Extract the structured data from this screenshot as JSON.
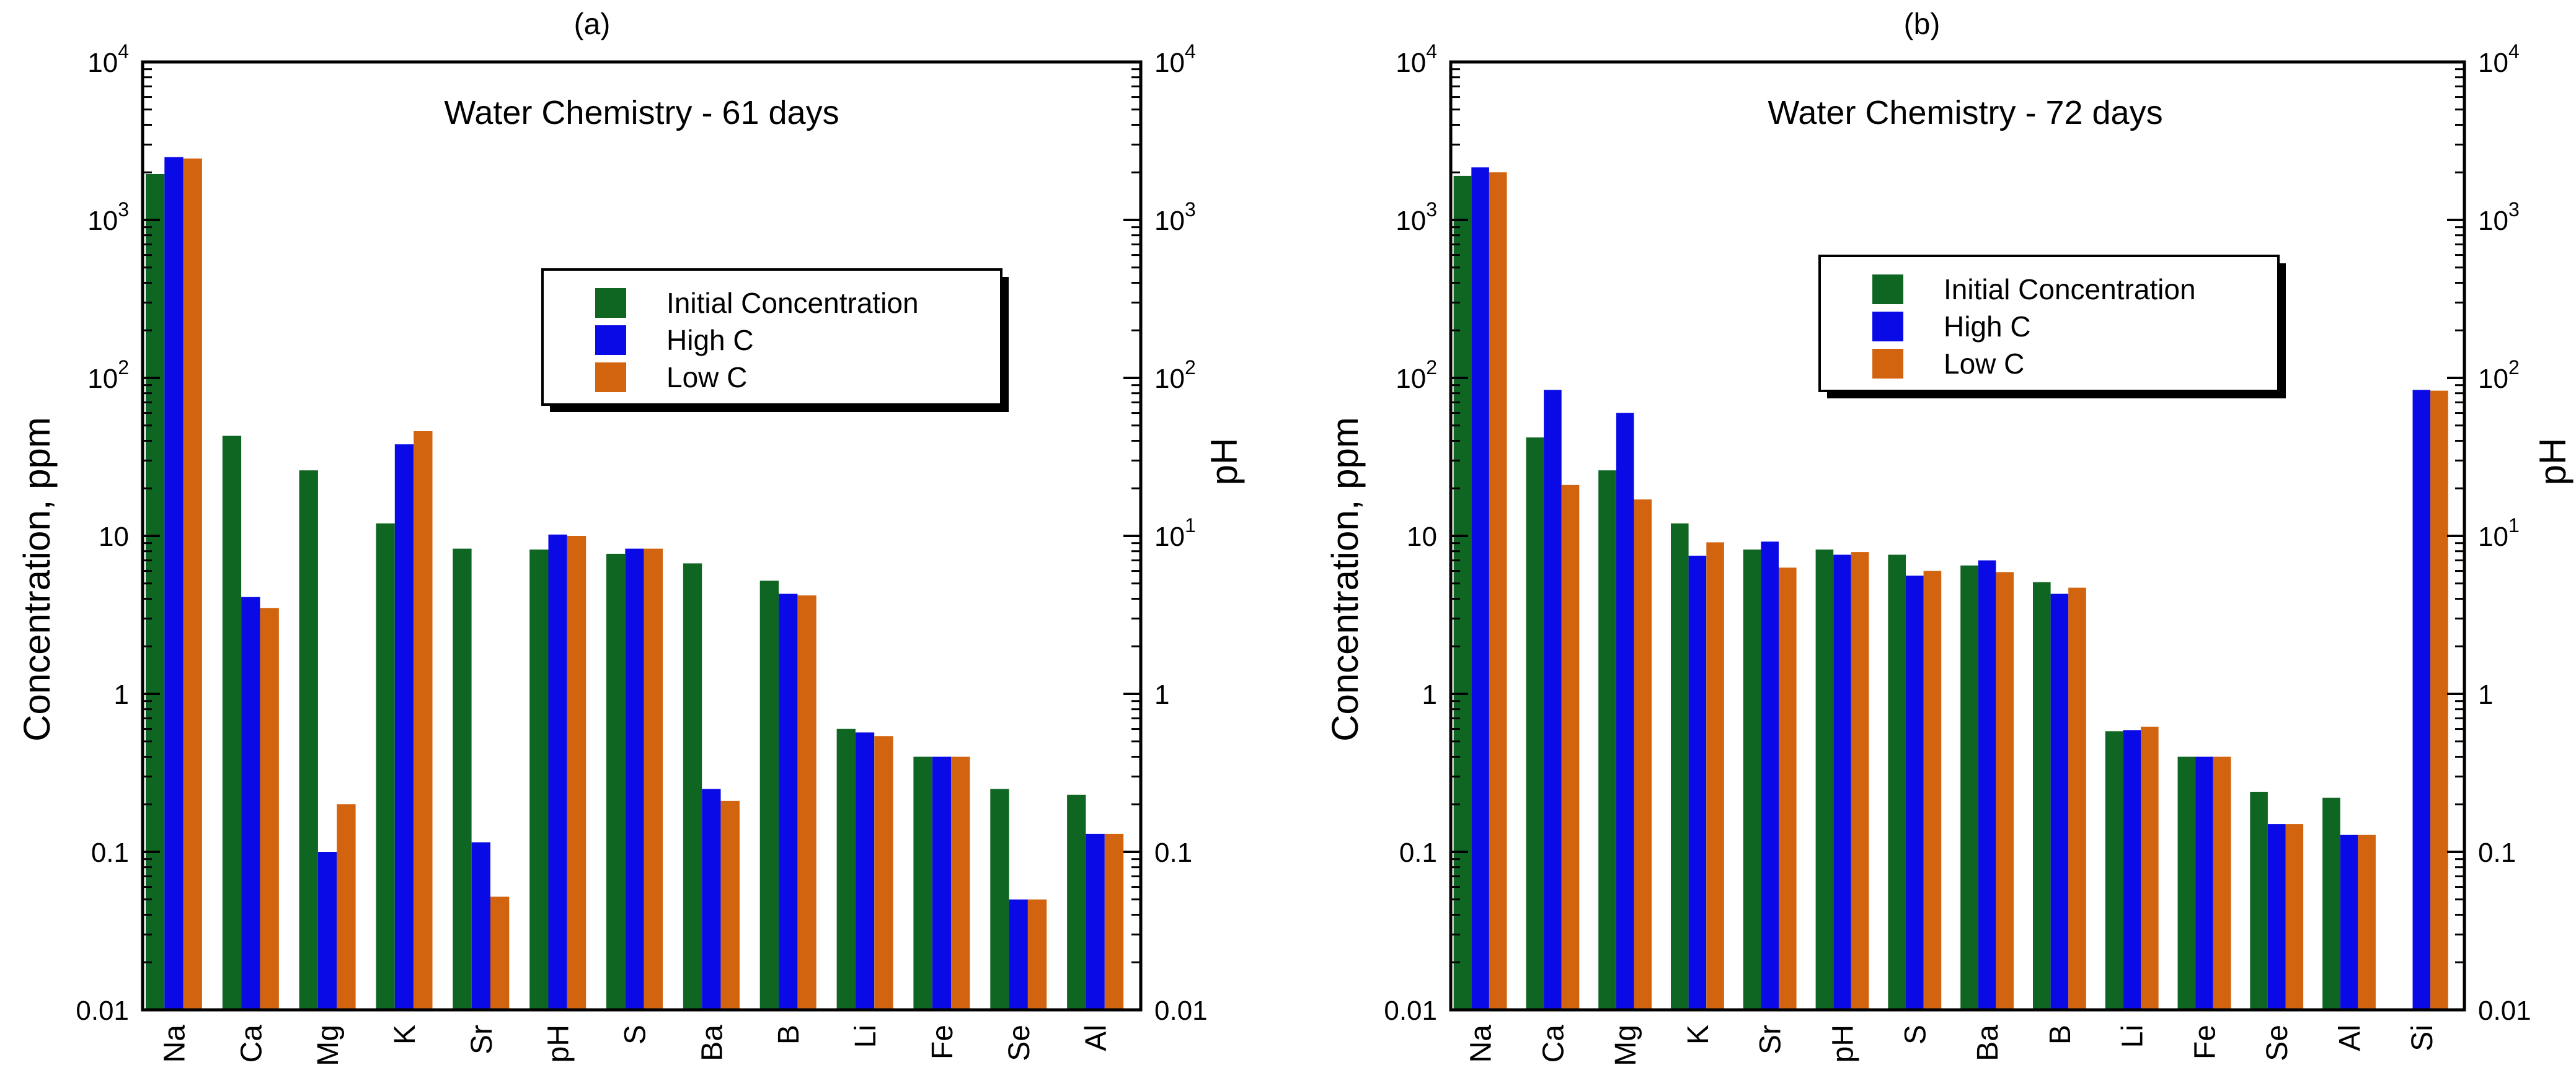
{
  "colors": {
    "initial": "#0f6622",
    "high": "#0a0ae6",
    "low": "#d2640f",
    "axis": "#000000"
  },
  "chart_data": [
    {
      "type": "bar",
      "panel_label": "(a)",
      "title": "Water Chemistry - 61 days",
      "ylabel": "Concentration, ppm",
      "y2label": "pH",
      "yscale": "log",
      "ylim": [
        0.01,
        10000
      ],
      "y_tick_labels": [
        "0.01",
        "0.1",
        "1",
        "10",
        "10",
        "10",
        "10"
      ],
      "y_tick_exponents": [
        "",
        "",
        "",
        "",
        "2",
        "3",
        "4"
      ],
      "y2_tick_labels": [
        "0.01",
        "0.1",
        "1",
        "10",
        "10",
        "10",
        "10"
      ],
      "y2_tick_exponents": [
        "",
        "",
        "",
        "1",
        "2",
        "3",
        "4"
      ],
      "legend_position": "upper-right",
      "categories": [
        "Na",
        "Ca",
        "Mg",
        "K",
        "Sr",
        "pH",
        "S",
        "Ba",
        "B",
        "Li",
        "Fe",
        "Se",
        "Al"
      ],
      "series": [
        {
          "name": "Initial Concentration",
          "color_key": "initial",
          "values": [
            1950,
            43,
            26,
            12,
            8.3,
            8.2,
            7.7,
            6.7,
            5.2,
            0.6,
            0.4,
            0.25,
            0.23
          ]
        },
        {
          "name": "High C",
          "color_key": "high",
          "values": [
            2500,
            4.1,
            0.1,
            38,
            0.115,
            10.2,
            8.3,
            0.25,
            4.3,
            0.57,
            0.4,
            0.05,
            0.13
          ]
        },
        {
          "name": "Low C",
          "color_key": "low",
          "values": [
            2450,
            3.5,
            0.2,
            46,
            0.052,
            10,
            8.3,
            0.21,
            4.2,
            0.54,
            0.4,
            0.05,
            0.13
          ]
        }
      ]
    },
    {
      "type": "bar",
      "panel_label": "(b)",
      "title": "Water Chemistry - 72 days",
      "ylabel": "Concentration, ppm",
      "y2label": "pH",
      "yscale": "log",
      "ylim": [
        0.01,
        10000
      ],
      "y_tick_labels": [
        "0.01",
        "0.1",
        "1",
        "10",
        "10",
        "10",
        "10"
      ],
      "y_tick_exponents": [
        "",
        "",
        "",
        "",
        "2",
        "3",
        "4"
      ],
      "y2_tick_labels": [
        "0.01",
        "0.1",
        "1",
        "10",
        "10",
        "10",
        "10"
      ],
      "y2_tick_exponents": [
        "",
        "",
        "",
        "1",
        "2",
        "3",
        "4"
      ],
      "legend_position": "upper-center",
      "categories": [
        "Na",
        "Ca",
        "Mg",
        "K",
        "Sr",
        "pH",
        "S",
        "Ba",
        "B",
        "Li",
        "Fe",
        "Se",
        "Al",
        "Si"
      ],
      "series": [
        {
          "name": "Initial Concentration",
          "color_key": "initial",
          "values": [
            1900,
            42,
            26,
            12,
            8.2,
            8.2,
            7.6,
            6.5,
            5.1,
            0.58,
            0.4,
            0.24,
            0.22,
            null
          ]
        },
        {
          "name": "High C",
          "color_key": "high",
          "values": [
            2150,
            84,
            60,
            7.5,
            9.2,
            7.6,
            5.6,
            7,
            4.3,
            0.59,
            0.4,
            0.15,
            0.128,
            84
          ]
        },
        {
          "name": "Low C",
          "color_key": "low",
          "values": [
            2000,
            21,
            17,
            9.1,
            6.3,
            7.9,
            6,
            5.9,
            4.7,
            0.62,
            0.4,
            0.15,
            0.128,
            83
          ]
        }
      ]
    }
  ]
}
